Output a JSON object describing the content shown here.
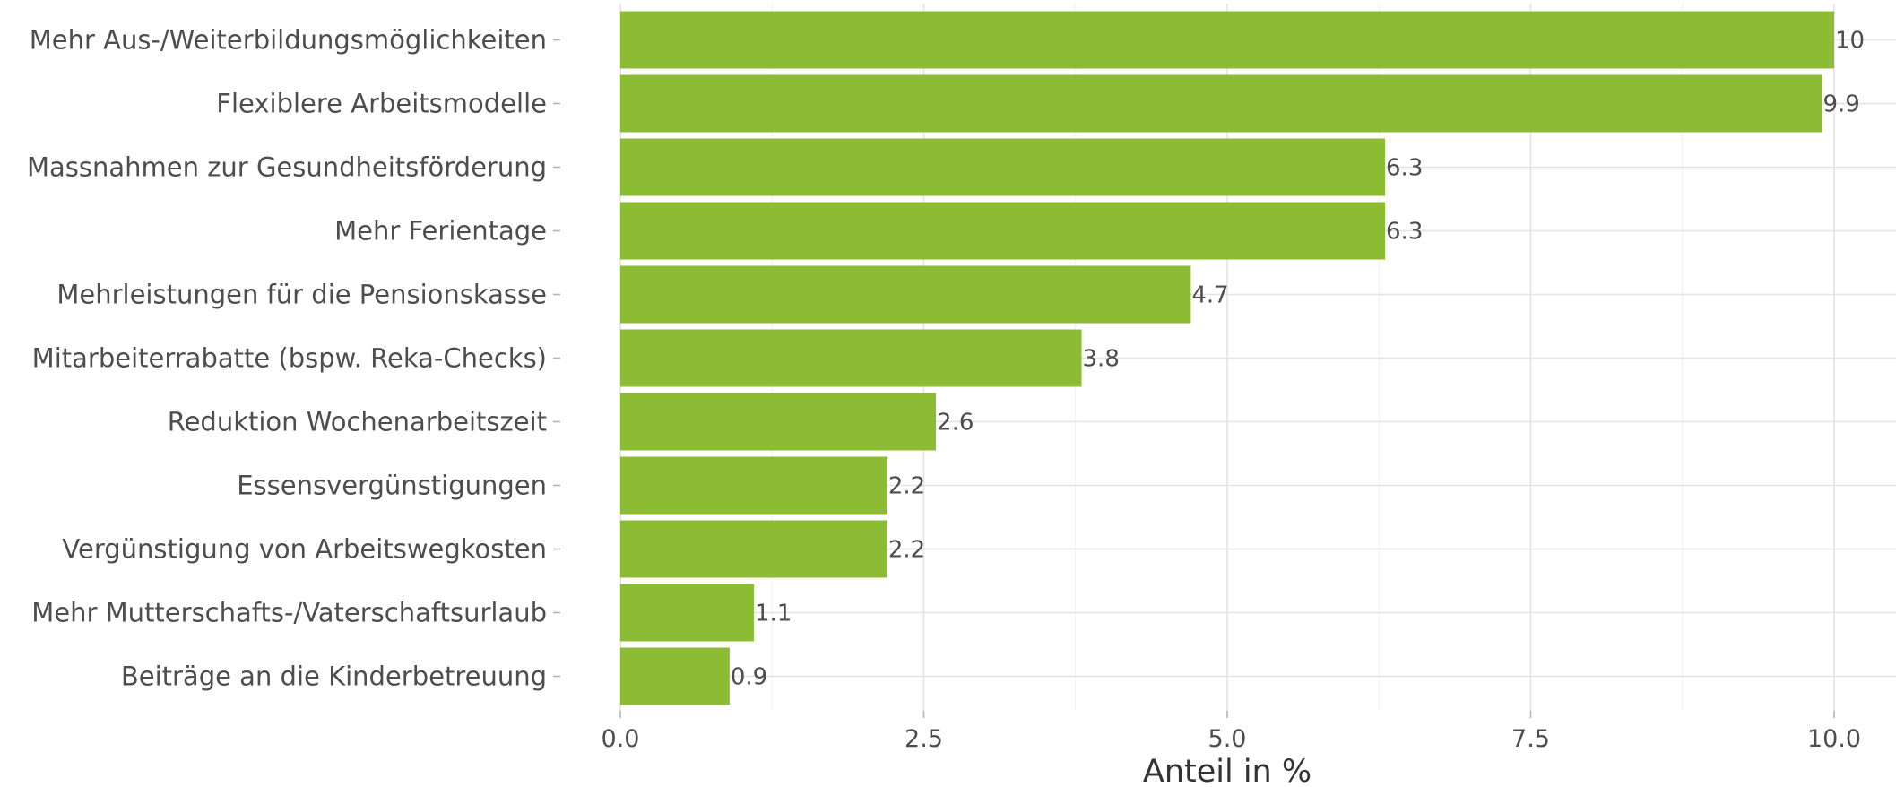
{
  "chart_data": {
    "type": "bar",
    "orientation": "horizontal",
    "categories": [
      "Mehr Aus-/Weiterbildungsmöglichkeiten",
      "Flexiblere Arbeitsmodelle",
      "Massnahmen zur Gesundheitsförderung",
      "Mehr Ferientage",
      "Mehrleistungen für die Pensionskasse",
      "Mitarbeiterrabatte (bspw. Reka-Checks)",
      "Reduktion Wochenarbeitszeit",
      "Essensvergünstigungen",
      "Vergünstigung von Arbeitswegkosten",
      "Mehr Mutterschafts-/Vaterschaftsurlaub",
      "Beiträge an die Kinderbetreuung"
    ],
    "values": [
      10,
      9.9,
      6.3,
      6.3,
      4.7,
      3.8,
      2.6,
      2.2,
      2.2,
      1.1,
      0.9
    ],
    "value_labels": [
      "10",
      "9.9",
      "6.3",
      "6.3",
      "4.7",
      "3.8",
      "2.6",
      "2.2",
      "2.2",
      "1.1",
      "0.9"
    ],
    "x_ticks": [
      "0.0",
      "2.5",
      "5.0",
      "7.5",
      "10.0"
    ],
    "xlim": [
      0,
      10.5
    ],
    "xlabel": "Anteil in %",
    "bar_color": "#8cbb34",
    "grid": true
  }
}
